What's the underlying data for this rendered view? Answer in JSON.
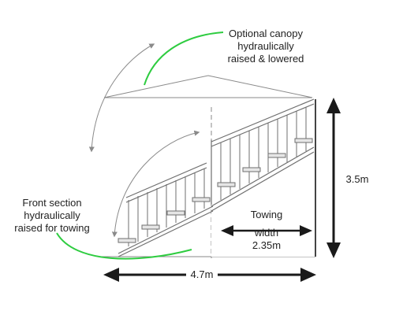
{
  "labels": {
    "canopy": [
      "Optional canopy",
      "hydraulically",
      "raised & lowered"
    ],
    "front_section": [
      "Front section",
      "hydraulically",
      "raised for towing"
    ],
    "towing": [
      "Towing",
      "width",
      "2.35m"
    ]
  },
  "dimensions": {
    "height": "3.5m",
    "length": "4.7m"
  },
  "colors": {
    "line": "#7a7a7a",
    "dark": "#1a1a1a",
    "leader": "#2ecc40",
    "step": "#e6e6e6"
  }
}
